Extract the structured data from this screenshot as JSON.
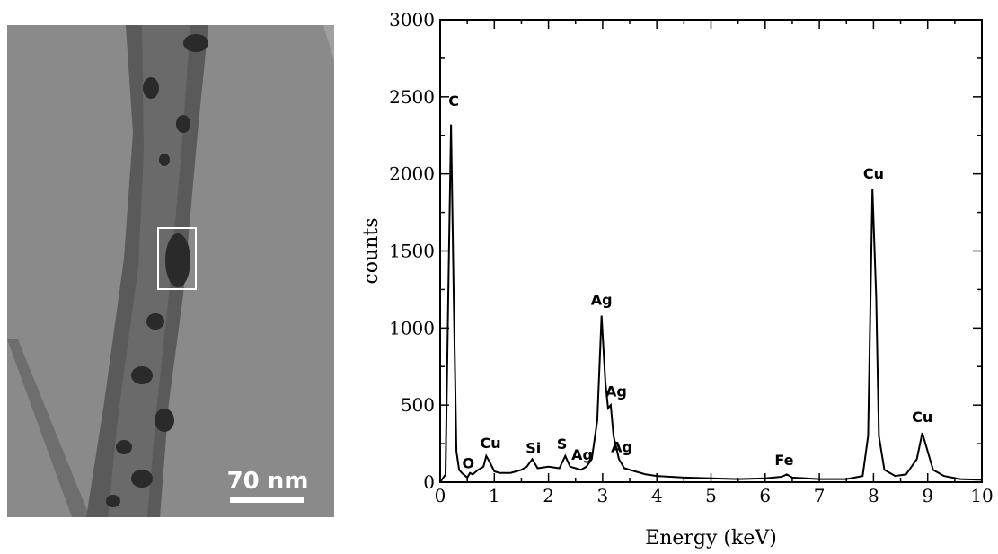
{
  "micrograph": {
    "scale_bar_label": "70 nm",
    "background_color": "#8a8a8a",
    "tube_color": "#5a5a5a",
    "particle_color": "#2a2a2a"
  },
  "chart_data": {
    "type": "line",
    "title": "",
    "xlabel": "Energy (keV)",
    "ylabel": "counts",
    "xlim": [
      0,
      10
    ],
    "ylim": [
      0,
      3000
    ],
    "xticks": [
      0,
      1,
      2,
      3,
      4,
      5,
      6,
      7,
      8,
      9,
      10
    ],
    "yticks": [
      0,
      500,
      1000,
      1500,
      2000,
      2500,
      3000
    ],
    "grid": false,
    "line_color": "#000000",
    "series": [
      {
        "x": [
          0.0,
          0.1,
          0.15,
          0.2,
          0.25,
          0.3,
          0.35,
          0.4,
          0.5,
          0.55,
          0.6,
          0.7,
          0.8,
          0.85,
          0.93,
          1.0,
          1.1,
          1.3,
          1.5,
          1.6,
          1.7,
          1.8,
          2.0,
          2.2,
          2.31,
          2.4,
          2.5,
          2.6,
          2.7,
          2.8,
          2.9,
          2.98,
          3.05,
          3.1,
          3.15,
          3.2,
          3.3,
          3.35,
          3.4,
          3.6,
          3.8,
          4.0,
          4.5,
          5.0,
          5.5,
          6.0,
          6.3,
          6.4,
          6.5,
          7.0,
          7.5,
          7.8,
          7.9,
          7.98,
          8.05,
          8.1,
          8.2,
          8.4,
          8.6,
          8.8,
          8.9,
          9.0,
          9.1,
          9.3,
          9.6,
          10.0
        ],
        "y": [
          0,
          50,
          1200,
          2320,
          1200,
          200,
          80,
          60,
          30,
          60,
          50,
          80,
          100,
          170,
          120,
          70,
          60,
          60,
          80,
          100,
          150,
          90,
          100,
          90,
          170,
          100,
          90,
          80,
          100,
          150,
          400,
          1080,
          650,
          480,
          500,
          300,
          150,
          120,
          90,
          70,
          50,
          40,
          30,
          25,
          20,
          25,
          35,
          50,
          30,
          20,
          20,
          40,
          300,
          1900,
          1200,
          300,
          80,
          40,
          50,
          150,
          320,
          200,
          80,
          40,
          20,
          15
        ]
      }
    ],
    "annotations": [
      {
        "text": "C",
        "x": 0.25,
        "y": 2440
      },
      {
        "text": "O",
        "x": 0.52,
        "y": 90
      },
      {
        "text": "Cu",
        "x": 0.93,
        "y": 220
      },
      {
        "text": "Si",
        "x": 1.72,
        "y": 190
      },
      {
        "text": "S",
        "x": 2.25,
        "y": 215
      },
      {
        "text": "Ag",
        "x": 2.62,
        "y": 145
      },
      {
        "text": "Ag",
        "x": 2.98,
        "y": 1150
      },
      {
        "text": "Ag",
        "x": 3.25,
        "y": 555
      },
      {
        "text": "Ag",
        "x": 3.35,
        "y": 195
      },
      {
        "text": "Fe",
        "x": 6.35,
        "y": 110
      },
      {
        "text": "Cu",
        "x": 8.0,
        "y": 1970
      },
      {
        "text": "Cu",
        "x": 8.9,
        "y": 390
      }
    ]
  }
}
